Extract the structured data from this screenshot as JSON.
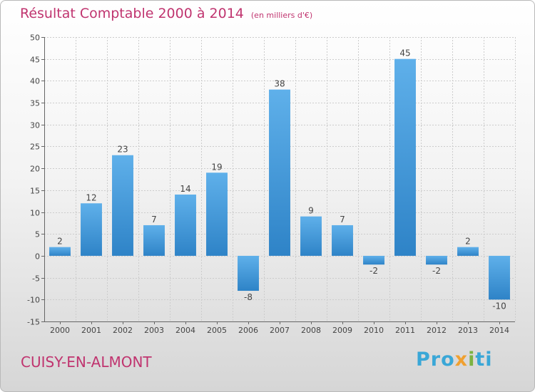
{
  "header": {
    "title": "Résultat Comptable 2000 à 2014",
    "unit": "(en milliers d'€)"
  },
  "footer": {
    "town": "CUISY-EN-ALMONT",
    "logo": [
      "Pro",
      "x",
      "i",
      "ti"
    ]
  },
  "colors": {
    "title": "#c0346f",
    "bar_light": "#5fb0ea",
    "bar_dark": "#2e83c7",
    "grid": "#cccccc",
    "axis": "#666666"
  },
  "chart_data": {
    "type": "bar",
    "title": "Résultat Comptable 2000 à 2014",
    "subtitle": "(en milliers d'€)",
    "xlabel": "",
    "ylabel": "",
    "ylim": [
      -15,
      50
    ],
    "yticks": [
      -15,
      -10,
      -5,
      0,
      5,
      10,
      15,
      20,
      25,
      30,
      35,
      40,
      45,
      50
    ],
    "grid": true,
    "categories": [
      "2000",
      "2001",
      "2002",
      "2003",
      "2004",
      "2005",
      "2006",
      "2007",
      "2008",
      "2009",
      "2010",
      "2011",
      "2012",
      "2013",
      "2014"
    ],
    "values": [
      2,
      12,
      23,
      7,
      14,
      19,
      -8,
      38,
      9,
      7,
      -2,
      45,
      -2,
      2,
      -10
    ]
  }
}
